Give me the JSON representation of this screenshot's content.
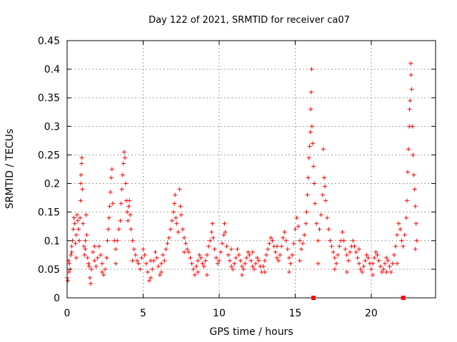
{
  "chart_data": {
    "type": "scatter",
    "title": "Day 122 of 2021, SRMTID for receiver ca07",
    "xlabel": "GPS time / hours",
    "ylabel": "SRMTID / TECUs",
    "xlim": [
      0,
      24.23
    ],
    "ylim": [
      0,
      0.45
    ],
    "grid": true,
    "marker": "+",
    "color": "#ff0000",
    "xticks": [
      0,
      5,
      10,
      15,
      20
    ],
    "xtick_labels": [
      "0",
      "5",
      "10",
      "15",
      "20"
    ],
    "yticks": [
      0,
      0.05,
      0.1,
      0.15,
      0.2,
      0.25,
      0.3,
      0.35,
      0.4,
      0.45
    ],
    "ytick_labels": [
      "0",
      "0.05",
      "0.1",
      "0.15",
      "0.2",
      "0.25",
      "0.3",
      "0.35",
      "0.4",
      "0.45"
    ],
    "baseline_markers": [
      16.2,
      22.1
    ],
    "series": [
      {
        "name": "SRMTID",
        "points": [
          [
            0.0,
            0.035
          ],
          [
            0.05,
            0.03
          ],
          [
            0.1,
            0.065
          ],
          [
            0.12,
            0.045
          ],
          [
            0.15,
            0.06
          ],
          [
            0.2,
            0.05
          ],
          [
            0.25,
            0.075
          ],
          [
            0.3,
            0.09
          ],
          [
            0.35,
            0.1
          ],
          [
            0.4,
            0.12
          ],
          [
            0.45,
            0.14
          ],
          [
            0.5,
            0.13
          ],
          [
            0.55,
            0.095
          ],
          [
            0.6,
            0.11
          ],
          [
            0.65,
            0.145
          ],
          [
            0.7,
            0.135
          ],
          [
            0.75,
            0.12
          ],
          [
            0.8,
            0.1
          ],
          [
            0.85,
            0.14
          ],
          [
            0.88,
            0.17
          ],
          [
            0.9,
            0.2
          ],
          [
            0.92,
            0.215
          ],
          [
            0.95,
            0.235
          ],
          [
            0.97,
            0.245
          ],
          [
            1.0,
            0.19
          ],
          [
            1.05,
            0.13
          ],
          [
            1.1,
            0.09
          ],
          [
            1.15,
            0.075
          ],
          [
            1.2,
            0.1
          ],
          [
            1.25,
            0.145
          ],
          [
            1.3,
            0.11
          ],
          [
            1.35,
            0.07
          ],
          [
            1.4,
            0.06
          ],
          [
            1.45,
            0.055
          ],
          [
            1.5,
            0.035
          ],
          [
            1.55,
            0.025
          ],
          [
            1.6,
            0.05
          ],
          [
            1.7,
            0.08
          ],
          [
            1.8,
            0.065
          ],
          [
            1.9,
            0.055
          ],
          [
            2.0,
            0.07
          ],
          [
            2.1,
            0.09
          ],
          [
            2.2,
            0.075
          ],
          [
            2.3,
            0.06
          ],
          [
            2.4,
            0.04
          ],
          [
            2.5,
            0.05
          ],
          [
            2.6,
            0.07
          ],
          [
            2.65,
            0.1
          ],
          [
            2.7,
            0.12
          ],
          [
            2.75,
            0.14
          ],
          [
            2.8,
            0.16
          ],
          [
            2.85,
            0.185
          ],
          [
            2.9,
            0.21
          ],
          [
            2.95,
            0.225
          ],
          [
            3.0,
            0.165
          ],
          [
            3.1,
            0.1
          ],
          [
            3.2,
            0.085
          ],
          [
            3.3,
            0.1
          ],
          [
            3.4,
            0.12
          ],
          [
            3.5,
            0.135
          ],
          [
            3.55,
            0.165
          ],
          [
            3.6,
            0.19
          ],
          [
            3.65,
            0.215
          ],
          [
            3.7,
            0.235
          ],
          [
            3.75,
            0.255
          ],
          [
            3.8,
            0.245
          ],
          [
            3.85,
            0.2
          ],
          [
            3.9,
            0.17
          ],
          [
            3.95,
            0.15
          ],
          [
            4.0,
            0.135
          ],
          [
            4.05,
            0.16
          ],
          [
            4.1,
            0.17
          ],
          [
            4.15,
            0.145
          ],
          [
            4.2,
            0.12
          ],
          [
            4.3,
            0.1
          ],
          [
            4.4,
            0.085
          ],
          [
            4.5,
            0.075
          ],
          [
            4.6,
            0.065
          ],
          [
            4.7,
            0.06
          ],
          [
            4.8,
            0.05
          ],
          [
            4.9,
            0.07
          ],
          [
            5.0,
            0.085
          ],
          [
            5.1,
            0.075
          ],
          [
            5.2,
            0.06
          ],
          [
            5.3,
            0.045
          ],
          [
            5.4,
            0.03
          ],
          [
            5.5,
            0.035
          ],
          [
            5.6,
            0.05
          ],
          [
            5.7,
            0.065
          ],
          [
            5.8,
            0.08
          ],
          [
            5.9,
            0.07
          ],
          [
            6.0,
            0.055
          ],
          [
            6.1,
            0.04
          ],
          [
            6.2,
            0.06
          ],
          [
            6.3,
            0.075
          ],
          [
            6.4,
            0.065
          ],
          [
            6.5,
            0.085
          ],
          [
            6.6,
            0.095
          ],
          [
            6.7,
            0.105
          ],
          [
            6.8,
            0.12
          ],
          [
            6.9,
            0.135
          ],
          [
            7.0,
            0.15
          ],
          [
            7.05,
            0.165
          ],
          [
            7.1,
            0.18
          ],
          [
            7.15,
            0.14
          ],
          [
            7.2,
            0.13
          ],
          [
            7.3,
            0.115
          ],
          [
            7.4,
            0.19
          ],
          [
            7.45,
            0.16
          ],
          [
            7.5,
            0.145
          ],
          [
            7.6,
            0.12
          ],
          [
            7.7,
            0.105
          ],
          [
            7.8,
            0.095
          ],
          [
            7.9,
            0.085
          ],
          [
            8.0,
            0.08
          ],
          [
            8.1,
            0.07
          ],
          [
            8.2,
            0.06
          ],
          [
            8.3,
            0.05
          ],
          [
            8.4,
            0.04
          ],
          [
            8.5,
            0.055
          ],
          [
            8.6,
            0.065
          ],
          [
            8.7,
            0.075
          ],
          [
            8.8,
            0.07
          ],
          [
            8.9,
            0.06
          ],
          [
            9.0,
            0.055
          ],
          [
            9.1,
            0.065
          ],
          [
            9.2,
            0.075
          ],
          [
            9.3,
            0.09
          ],
          [
            9.4,
            0.1
          ],
          [
            9.5,
            0.115
          ],
          [
            9.55,
            0.13
          ],
          [
            9.6,
            0.105
          ],
          [
            9.7,
            0.085
          ],
          [
            9.8,
            0.07
          ],
          [
            9.9,
            0.06
          ],
          [
            10.0,
            0.065
          ],
          [
            10.1,
            0.08
          ],
          [
            10.2,
            0.095
          ],
          [
            10.3,
            0.11
          ],
          [
            10.35,
            0.13
          ],
          [
            10.4,
            0.115
          ],
          [
            10.5,
            0.09
          ],
          [
            10.6,
            0.075
          ],
          [
            10.7,
            0.065
          ],
          [
            10.8,
            0.055
          ],
          [
            10.9,
            0.05
          ],
          [
            11.0,
            0.06
          ],
          [
            11.1,
            0.07
          ],
          [
            11.2,
            0.085
          ],
          [
            11.3,
            0.075
          ],
          [
            11.4,
            0.065
          ],
          [
            11.5,
            0.055
          ],
          [
            11.6,
            0.05
          ],
          [
            11.7,
            0.06
          ],
          [
            11.8,
            0.07
          ],
          [
            11.9,
            0.08
          ],
          [
            12.0,
            0.075
          ],
          [
            12.1,
            0.065
          ],
          [
            12.2,
            0.055
          ],
          [
            12.3,
            0.05
          ],
          [
            12.4,
            0.06
          ],
          [
            12.5,
            0.07
          ],
          [
            12.6,
            0.065
          ],
          [
            12.7,
            0.055
          ],
          [
            12.8,
            0.045
          ],
          [
            12.9,
            0.055
          ],
          [
            13.0,
            0.065
          ],
          [
            13.1,
            0.075
          ],
          [
            13.2,
            0.085
          ],
          [
            13.3,
            0.095
          ],
          [
            13.4,
            0.105
          ],
          [
            13.5,
            0.1
          ],
          [
            13.6,
            0.09
          ],
          [
            13.7,
            0.08
          ],
          [
            13.8,
            0.07
          ],
          [
            13.9,
            0.065
          ],
          [
            14.0,
            0.075
          ],
          [
            14.1,
            0.09
          ],
          [
            14.2,
            0.105
          ],
          [
            14.3,
            0.115
          ],
          [
            14.4,
            0.1
          ],
          [
            14.5,
            0.085
          ],
          [
            14.6,
            0.07
          ],
          [
            14.7,
            0.06
          ],
          [
            14.8,
            0.075
          ],
          [
            14.9,
            0.095
          ],
          [
            15.0,
            0.12
          ],
          [
            15.1,
            0.14
          ],
          [
            15.2,
            0.125
          ],
          [
            15.3,
            0.1
          ],
          [
            15.4,
            0.085
          ],
          [
            15.5,
            0.095
          ],
          [
            15.6,
            0.11
          ],
          [
            15.7,
            0.13
          ],
          [
            15.75,
            0.15
          ],
          [
            15.8,
            0.18
          ],
          [
            15.85,
            0.21
          ],
          [
            15.9,
            0.245
          ],
          [
            15.95,
            0.265
          ],
          [
            16.0,
            0.29
          ],
          [
            16.02,
            0.33
          ],
          [
            16.05,
            0.36
          ],
          [
            16.08,
            0.4
          ],
          [
            16.1,
            0.3
          ],
          [
            16.15,
            0.27
          ],
          [
            16.2,
            0.23
          ],
          [
            16.25,
            0.2
          ],
          [
            16.3,
            0.165
          ],
          [
            16.4,
            0.13
          ],
          [
            16.5,
            0.1
          ],
          [
            16.6,
            0.12
          ],
          [
            16.7,
            0.145
          ],
          [
            16.8,
            0.18
          ],
          [
            16.85,
            0.26
          ],
          [
            16.9,
            0.21
          ],
          [
            16.95,
            0.195
          ],
          [
            17.0,
            0.17
          ],
          [
            17.1,
            0.14
          ],
          [
            17.2,
            0.12
          ],
          [
            17.3,
            0.1
          ],
          [
            17.4,
            0.09
          ],
          [
            17.5,
            0.08
          ],
          [
            17.6,
            0.07
          ],
          [
            17.7,
            0.06
          ],
          [
            17.8,
            0.075
          ],
          [
            17.9,
            0.09
          ],
          [
            18.0,
            0.1
          ],
          [
            18.1,
            0.115
          ],
          [
            18.2,
            0.1
          ],
          [
            18.3,
            0.085
          ],
          [
            18.4,
            0.075
          ],
          [
            18.5,
            0.065
          ],
          [
            18.6,
            0.08
          ],
          [
            18.7,
            0.09
          ],
          [
            18.8,
            0.1
          ],
          [
            18.9,
            0.09
          ],
          [
            19.0,
            0.08
          ],
          [
            19.1,
            0.07
          ],
          [
            19.2,
            0.06
          ],
          [
            19.3,
            0.05
          ],
          [
            19.4,
            0.045
          ],
          [
            19.5,
            0.055
          ],
          [
            19.6,
            0.065
          ],
          [
            19.7,
            0.075
          ],
          [
            19.8,
            0.07
          ],
          [
            19.9,
            0.06
          ],
          [
            20.0,
            0.05
          ],
          [
            20.1,
            0.06
          ],
          [
            20.2,
            0.07
          ],
          [
            20.3,
            0.08
          ],
          [
            20.4,
            0.075
          ],
          [
            20.5,
            0.065
          ],
          [
            20.6,
            0.055
          ],
          [
            20.7,
            0.045
          ],
          [
            20.8,
            0.05
          ],
          [
            20.9,
            0.06
          ],
          [
            21.0,
            0.07
          ],
          [
            21.1,
            0.065
          ],
          [
            21.2,
            0.055
          ],
          [
            21.3,
            0.045
          ],
          [
            21.4,
            0.06
          ],
          [
            21.5,
            0.075
          ],
          [
            21.6,
            0.09
          ],
          [
            21.7,
            0.11
          ],
          [
            21.8,
            0.13
          ],
          [
            21.9,
            0.12
          ],
          [
            22.0,
            0.1
          ],
          [
            22.1,
            0.09
          ],
          [
            22.2,
            0.11
          ],
          [
            22.3,
            0.14
          ],
          [
            22.35,
            0.17
          ],
          [
            22.4,
            0.22
          ],
          [
            22.45,
            0.26
          ],
          [
            22.5,
            0.3
          ],
          [
            22.52,
            0.33
          ],
          [
            22.55,
            0.345
          ],
          [
            22.6,
            0.41
          ],
          [
            22.62,
            0.39
          ],
          [
            22.65,
            0.365
          ],
          [
            22.7,
            0.3
          ],
          [
            22.75,
            0.25
          ],
          [
            22.8,
            0.215
          ],
          [
            22.85,
            0.19
          ],
          [
            22.9,
            0.16
          ],
          [
            22.95,
            0.13
          ],
          [
            23.0,
            0.1
          ],
          [
            0.3,
            0.08
          ],
          [
            0.6,
            0.07
          ],
          [
            1.2,
            0.085
          ],
          [
            1.8,
            0.09
          ],
          [
            2.3,
            0.045
          ],
          [
            3.2,
            0.06
          ],
          [
            4.3,
            0.065
          ],
          [
            5.5,
            0.065
          ],
          [
            6.2,
            0.045
          ],
          [
            7.7,
            0.08
          ],
          [
            8.6,
            0.045
          ],
          [
            9.2,
            0.04
          ],
          [
            10.8,
            0.085
          ],
          [
            11.5,
            0.04
          ],
          [
            12.2,
            0.08
          ],
          [
            13.0,
            0.045
          ],
          [
            13.8,
            0.09
          ],
          [
            14.6,
            0.045
          ],
          [
            15.3,
            0.065
          ],
          [
            16.5,
            0.06
          ],
          [
            17.6,
            0.05
          ],
          [
            18.4,
            0.045
          ],
          [
            19.2,
            0.085
          ],
          [
            20.1,
            0.04
          ],
          [
            21.0,
            0.045
          ],
          [
            21.7,
            0.06
          ],
          [
            22.9,
            0.085
          ]
        ]
      }
    ]
  }
}
